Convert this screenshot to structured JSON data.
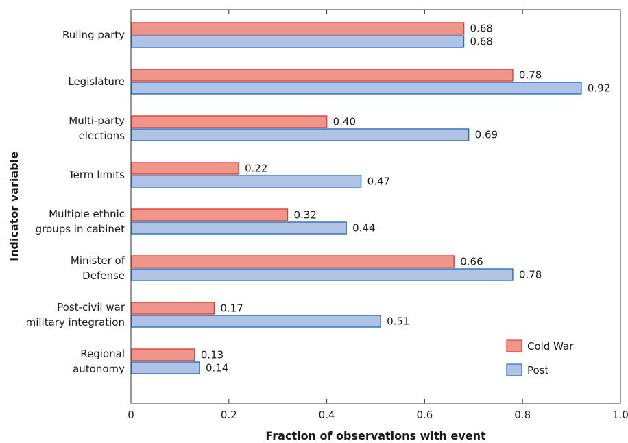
{
  "chart_data": {
    "type": "bar",
    "orientation": "horizontal",
    "categories": [
      [
        "Ruling party"
      ],
      [
        "Legislature"
      ],
      [
        "Multi-party",
        "elections"
      ],
      [
        "Term limits"
      ],
      [
        "Multiple ethnic",
        "groups in cabinet"
      ],
      [
        "Minister of",
        "Defense"
      ],
      [
        "Post-civil war",
        "military integration"
      ],
      [
        "Regional",
        "autonomy"
      ]
    ],
    "series": [
      {
        "name": "Cold War",
        "values": [
          0.68,
          0.78,
          0.4,
          0.22,
          0.32,
          0.66,
          0.17,
          0.13
        ],
        "labels": [
          "0.68",
          "0.78",
          "0.40",
          "0.22",
          "0.32",
          "0.66",
          "0.17",
          "0.13"
        ],
        "fill": "#f0958a",
        "stroke": "#d9413a"
      },
      {
        "name": "Post",
        "values": [
          0.68,
          0.92,
          0.69,
          0.47,
          0.44,
          0.78,
          0.51,
          0.14
        ],
        "labels": [
          "0.68",
          "0.92",
          "0.69",
          "0.47",
          "0.44",
          "0.78",
          "0.51",
          "0.14"
        ],
        "fill": "#aec3e6",
        "stroke": "#2e6db6"
      }
    ],
    "xlabel": "Fraction of observations with event",
    "ylabel": "Indicator variable",
    "xlim": [
      0,
      1.0
    ],
    "xticks": [
      "0",
      "0.2",
      "0.4",
      "0.6",
      "0.8",
      "1.0"
    ],
    "legend_position": "bottom-right",
    "grid": false
  }
}
